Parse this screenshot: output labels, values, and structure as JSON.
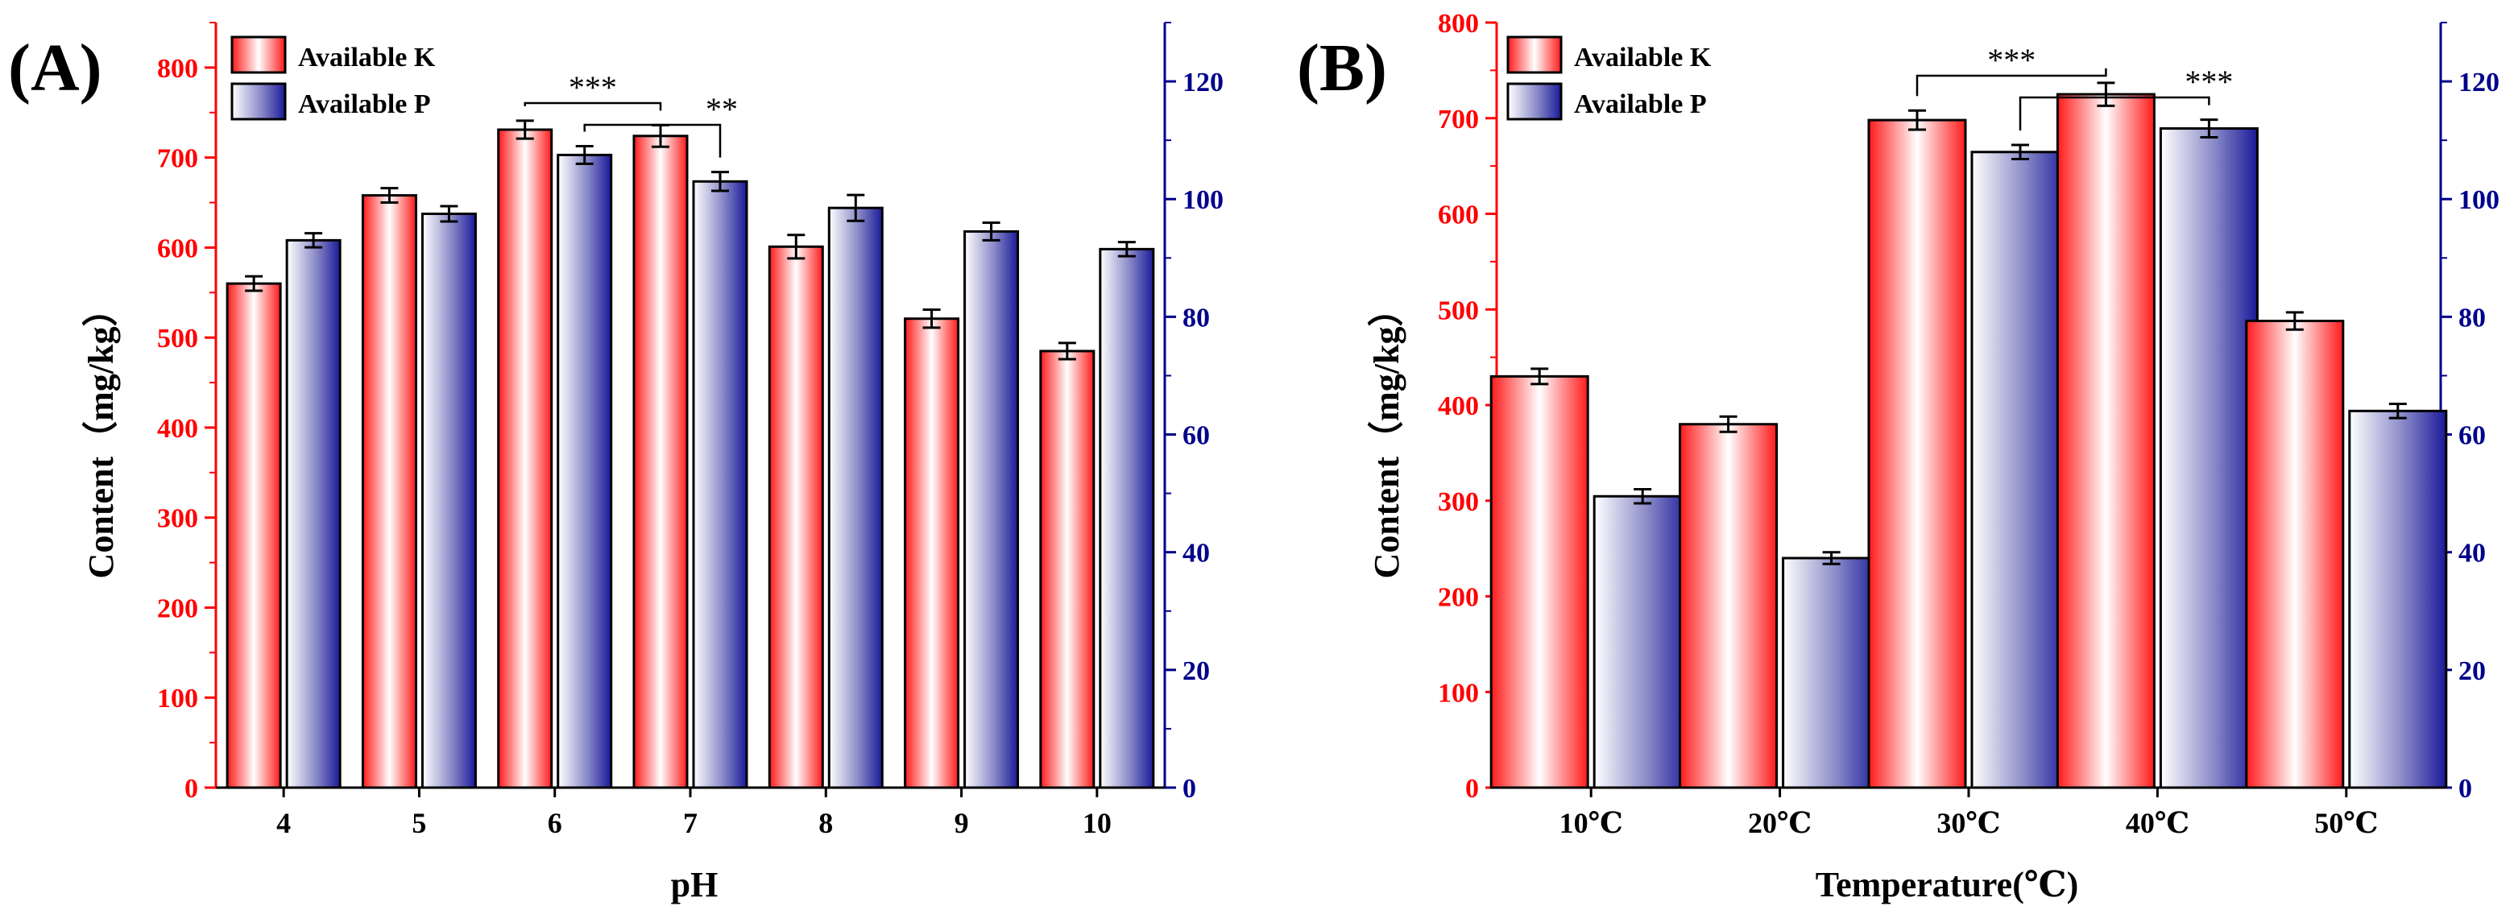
{
  "colors": {
    "available_k": "#ff1a1a",
    "available_p": "#1a1a9a",
    "left_axis": "#ff0000",
    "right_axis": "#00008b",
    "text": "#000000"
  },
  "chart_data": [
    {
      "panel_label": "(A)",
      "type": "bar",
      "categories": [
        "4",
        "5",
        "6",
        "7",
        "8",
        "9",
        "10"
      ],
      "xlabel": "pH",
      "ylabel": "Content（mg/kg）",
      "ylim_left": [
        0,
        850
      ],
      "yticks_left": [
        0,
        100,
        200,
        300,
        400,
        500,
        600,
        700,
        800
      ],
      "ylim_right": [
        0,
        130
      ],
      "yticks_right": [
        0,
        20,
        40,
        60,
        80,
        100,
        120
      ],
      "legend": [
        "Available K",
        "Available P"
      ],
      "legend_position": "top-left",
      "series": [
        {
          "name": "Available K",
          "axis": "left",
          "values": [
            560,
            658,
            731,
            724,
            601,
            521,
            485
          ],
          "errors": [
            8,
            8,
            10,
            12,
            13,
            10,
            9
          ]
        },
        {
          "name": "Available P",
          "axis": "right",
          "values": [
            93,
            97.5,
            107.5,
            103,
            98.5,
            94.5,
            91.5
          ],
          "errors": [
            1.2,
            1.3,
            1.5,
            1.6,
            2.2,
            1.5,
            1.2
          ]
        }
      ],
      "significance": [
        {
          "label": "***",
          "from": "Available K @ 6",
          "to": "Available K @ 7"
        },
        {
          "label": "**",
          "from": "Available P @ 6",
          "to": "Available P @ 7"
        }
      ]
    },
    {
      "panel_label": "(B)",
      "type": "bar",
      "categories": [
        "10℃",
        "20℃",
        "30℃",
        "40℃",
        "50℃"
      ],
      "xlabel": "Temperature(℃)",
      "ylabel": "Content（mg/kg）",
      "ylim_left": [
        0,
        800
      ],
      "yticks_left": [
        0,
        100,
        200,
        300,
        400,
        500,
        600,
        700,
        800
      ],
      "ylim_right": [
        0,
        130
      ],
      "yticks_right": [
        0,
        20,
        40,
        60,
        80,
        100,
        120
      ],
      "legend": [
        "Available K",
        "Available P"
      ],
      "legend_position": "top-left",
      "series": [
        {
          "name": "Available K",
          "axis": "left",
          "values": [
            430,
            380,
            698,
            725,
            488
          ],
          "errors": [
            8,
            8,
            10,
            12,
            9
          ]
        },
        {
          "name": "Available P",
          "axis": "right",
          "values": [
            49.5,
            39,
            108,
            112,
            64
          ],
          "errors": [
            1.2,
            1.0,
            1.2,
            1.5,
            1.2
          ]
        }
      ],
      "significance": [
        {
          "label": "***",
          "from": "Available K @ 30℃",
          "to": "Available K @ 40℃"
        },
        {
          "label": "***",
          "from": "Available P @ 30℃",
          "to": "Available P @ 40℃"
        }
      ]
    }
  ]
}
